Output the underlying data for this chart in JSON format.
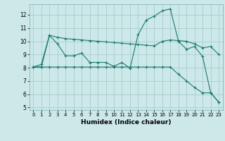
{
  "xlabel": "Humidex (Indice chaleur)",
  "background_color": "#cce8e8",
  "grid_color": "#aacccc",
  "line_color": "#1a7a6e",
  "xlim": [
    -0.5,
    23.5
  ],
  "ylim": [
    4.8,
    12.8
  ],
  "yticks": [
    5,
    6,
    7,
    8,
    9,
    10,
    11,
    12
  ],
  "xticks": [
    0,
    1,
    2,
    3,
    4,
    5,
    6,
    7,
    8,
    9,
    10,
    11,
    12,
    13,
    14,
    15,
    16,
    17,
    18,
    19,
    20,
    21,
    22,
    23
  ],
  "series": [
    {
      "x": [
        0,
        1,
        2,
        3,
        4,
        5,
        6,
        7,
        8,
        9,
        10,
        11,
        12,
        13,
        14,
        15,
        16,
        17,
        18,
        19,
        20,
        21,
        22,
        23
      ],
      "y": [
        8.05,
        8.25,
        10.45,
        9.8,
        8.9,
        8.9,
        9.1,
        8.4,
        8.4,
        8.4,
        8.1,
        8.4,
        7.95,
        10.5,
        11.6,
        11.9,
        12.3,
        12.45,
        10.0,
        9.4,
        9.6,
        8.85,
        6.1,
        5.4
      ]
    },
    {
      "x": [
        0,
        1,
        2,
        3,
        4,
        5,
        6,
        7,
        8,
        9,
        10,
        11,
        12,
        13,
        14,
        15,
        16,
        17,
        18,
        19,
        20,
        21,
        22,
        23
      ],
      "y": [
        8.05,
        8.05,
        10.45,
        10.3,
        10.2,
        10.15,
        10.1,
        10.05,
        10.0,
        9.95,
        9.9,
        9.85,
        9.8,
        9.75,
        9.7,
        9.65,
        10.0,
        10.1,
        10.05,
        10.0,
        9.8,
        9.5,
        9.6,
        9.0
      ]
    },
    {
      "x": [
        0,
        1,
        2,
        3,
        4,
        5,
        6,
        7,
        8,
        9,
        10,
        11,
        12,
        13,
        14,
        15,
        16,
        17,
        18,
        19,
        20,
        21,
        22,
        23
      ],
      "y": [
        8.05,
        8.05,
        8.05,
        8.05,
        8.05,
        8.05,
        8.05,
        8.05,
        8.05,
        8.05,
        8.05,
        8.05,
        8.05,
        8.05,
        8.05,
        8.05,
        8.05,
        8.05,
        7.5,
        7.0,
        6.5,
        6.1,
        6.1,
        5.4
      ]
    }
  ]
}
